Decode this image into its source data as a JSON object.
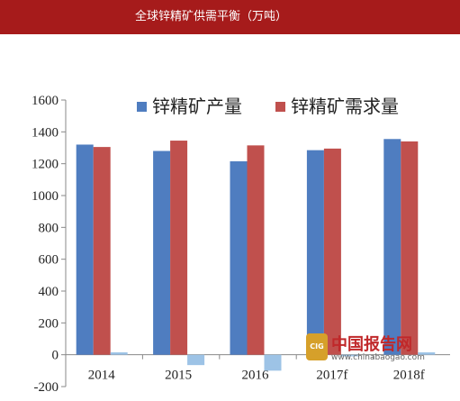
{
  "header": {
    "title": "全球锌精矿供需平衡（万吨）"
  },
  "watermark": {
    "logo": "CIG",
    "name": "中国报告网",
    "url": "www.chinabaogao.com"
  },
  "colors": {
    "supply": "#4f7dc0",
    "demand": "#c0504d",
    "balance": "#9dc3e6"
  },
  "chart_data": {
    "type": "bar",
    "title": "全球锌精矿供需平衡（万吨）",
    "categories": [
      "2014",
      "2015",
      "2016",
      "2017f",
      "2018f"
    ],
    "ylim": [
      -200,
      1600
    ],
    "yticks": [
      "-200",
      "0",
      "200",
      "400",
      "600",
      "800",
      "1000",
      "1200",
      "1400",
      "1600"
    ],
    "series": [
      {
        "name": "锌精矿产量",
        "color": "#4f7dc0",
        "values": [
          1320,
          1280,
          1215,
          1285,
          1355
        ]
      },
      {
        "name": "锌精矿需求量",
        "color": "#c0504d",
        "values": [
          1305,
          1345,
          1315,
          1295,
          1340
        ]
      },
      {
        "color": "#9dc3e6",
        "values": [
          15,
          -65,
          -100,
          -10,
          15
        ]
      }
    ],
    "legend": "top",
    "grid": false
  }
}
